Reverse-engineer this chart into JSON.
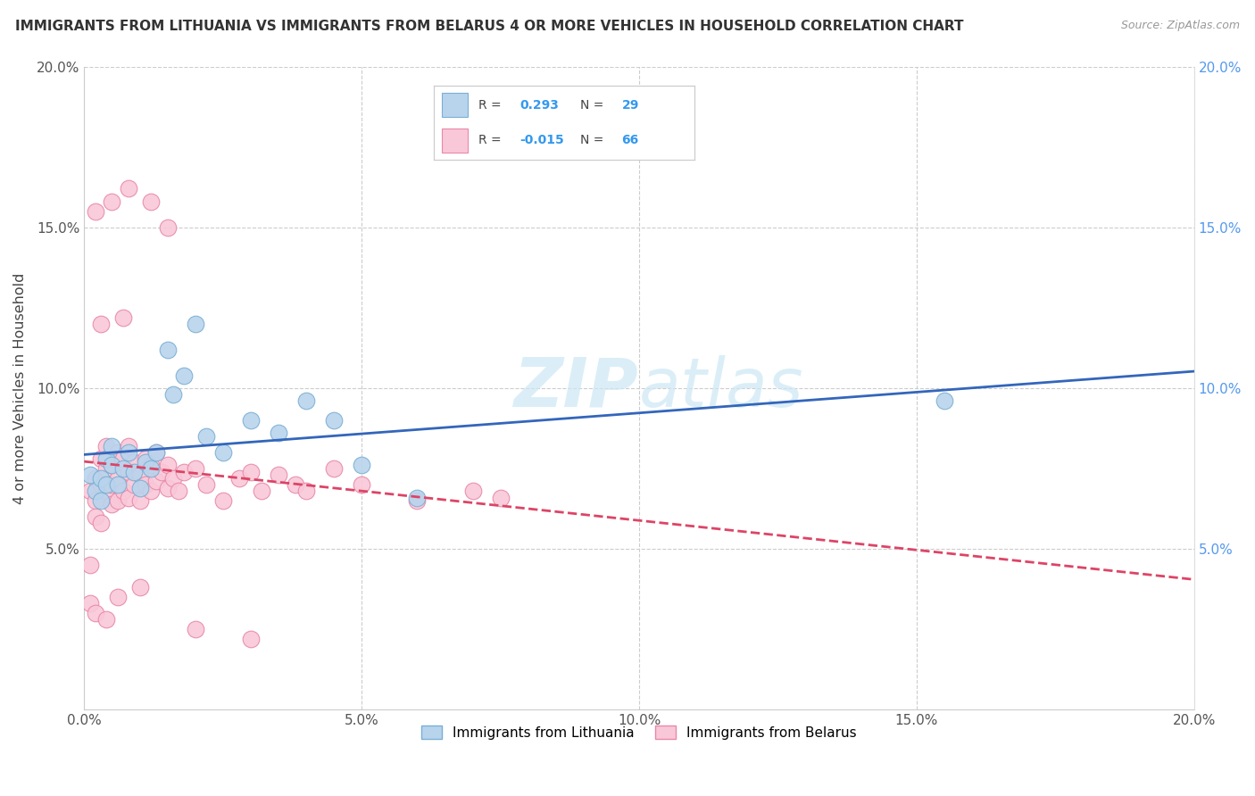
{
  "title": "IMMIGRANTS FROM LITHUANIA VS IMMIGRANTS FROM BELARUS 4 OR MORE VEHICLES IN HOUSEHOLD CORRELATION CHART",
  "source": "Source: ZipAtlas.com",
  "ylabel": "4 or more Vehicles in Household",
  "xlim": [
    0.0,
    0.2
  ],
  "ylim": [
    0.0,
    0.2
  ],
  "xticks": [
    0.0,
    0.05,
    0.1,
    0.15,
    0.2
  ],
  "yticks": [
    0.05,
    0.1,
    0.15,
    0.2
  ],
  "xtick_labels": [
    "0.0%",
    "5.0%",
    "10.0%",
    "15.0%",
    "20.0%"
  ],
  "ytick_labels": [
    "5.0%",
    "10.0%",
    "15.0%",
    "20.0%"
  ],
  "right_ytick_labels": [
    "5.0%",
    "10.0%",
    "15.0%",
    "20.0%"
  ],
  "lithuania_color": "#b8d4ed",
  "lithuania_edge": "#7aafd4",
  "belarus_color": "#f9c8d8",
  "belarus_edge": "#e888a8",
  "line_lithuania_color": "#3366bb",
  "line_belarus_color": "#dd4466",
  "watermark_color": "#cce8f4",
  "legend_R1": "0.293",
  "legend_N1": "29",
  "legend_R2": "-0.015",
  "legend_N2": "66",
  "legend_label1": "Immigrants from Lithuania",
  "legend_label2": "Immigrants from Belarus",
  "lith_x": [
    0.001,
    0.002,
    0.003,
    0.003,
    0.004,
    0.004,
    0.005,
    0.005,
    0.006,
    0.007,
    0.008,
    0.009,
    0.01,
    0.011,
    0.012,
    0.013,
    0.015,
    0.016,
    0.018,
    0.02,
    0.022,
    0.025,
    0.03,
    0.035,
    0.04,
    0.045,
    0.05,
    0.06,
    0.155
  ],
  "lith_y": [
    0.073,
    0.068,
    0.072,
    0.065,
    0.07,
    0.078,
    0.076,
    0.082,
    0.07,
    0.075,
    0.08,
    0.074,
    0.069,
    0.077,
    0.075,
    0.08,
    0.112,
    0.098,
    0.104,
    0.12,
    0.085,
    0.08,
    0.09,
    0.086,
    0.096,
    0.09,
    0.076,
    0.066,
    0.096
  ],
  "bela_x": [
    0.001,
    0.001,
    0.002,
    0.002,
    0.002,
    0.003,
    0.003,
    0.003,
    0.004,
    0.004,
    0.004,
    0.005,
    0.005,
    0.005,
    0.006,
    0.006,
    0.006,
    0.007,
    0.007,
    0.008,
    0.008,
    0.008,
    0.009,
    0.009,
    0.01,
    0.01,
    0.011,
    0.011,
    0.012,
    0.012,
    0.013,
    0.013,
    0.014,
    0.015,
    0.015,
    0.016,
    0.017,
    0.018,
    0.02,
    0.022,
    0.025,
    0.028,
    0.03,
    0.032,
    0.035,
    0.038,
    0.04,
    0.045,
    0.05,
    0.06,
    0.07,
    0.075,
    0.002,
    0.005,
    0.008,
    0.012,
    0.015,
    0.003,
    0.007,
    0.01,
    0.001,
    0.002,
    0.006,
    0.004,
    0.02,
    0.03
  ],
  "bela_y": [
    0.068,
    0.045,
    0.072,
    0.065,
    0.06,
    0.078,
    0.07,
    0.058,
    0.075,
    0.068,
    0.082,
    0.076,
    0.07,
    0.064,
    0.08,
    0.072,
    0.065,
    0.078,
    0.068,
    0.082,
    0.074,
    0.066,
    0.077,
    0.07,
    0.073,
    0.065,
    0.078,
    0.07,
    0.076,
    0.068,
    0.08,
    0.071,
    0.074,
    0.069,
    0.076,
    0.072,
    0.068,
    0.074,
    0.075,
    0.07,
    0.065,
    0.072,
    0.074,
    0.068,
    0.073,
    0.07,
    0.068,
    0.075,
    0.07,
    0.065,
    0.068,
    0.066,
    0.155,
    0.158,
    0.162,
    0.158,
    0.15,
    0.12,
    0.122,
    0.038,
    0.033,
    0.03,
    0.035,
    0.028,
    0.025,
    0.022
  ]
}
